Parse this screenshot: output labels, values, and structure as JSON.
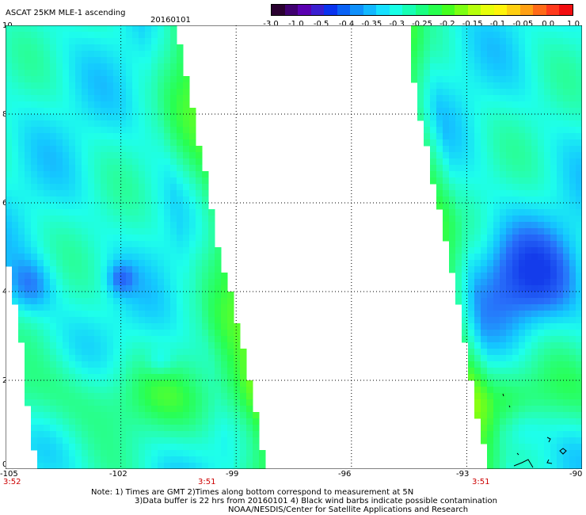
{
  "header": {
    "title": "ASCAT 25KM MLE-1 ascending",
    "date": "20160101"
  },
  "colorbar": {
    "ticks": [
      "-3.0",
      "-1.0",
      "-0.5",
      "-0.4",
      "-0.35",
      "-0.3",
      "-0.25",
      "-0.2",
      "-0.15",
      "-0.1",
      "-0.05",
      "0.0",
      "1.0"
    ],
    "colors": [
      "#2a0030",
      "#400070",
      "#5a00b0",
      "#3a1fd0",
      "#0a33ee",
      "#0a62f5",
      "#0f90fb",
      "#12b8ff",
      "#16e0ff",
      "#18ffe6",
      "#16ffb3",
      "#19ff80",
      "#27ff4d",
      "#44ff1e",
      "#7cff12",
      "#b6ff0c",
      "#e7ff0a",
      "#fff40a",
      "#ffcf10",
      "#ffa014",
      "#ff6a18",
      "#ff3a1c",
      "#f20d10"
    ]
  },
  "axes": {
    "y_labels": [
      "10",
      "8",
      "6",
      "4",
      "2",
      "0"
    ],
    "x_labels": [
      "-105",
      "-102",
      "-99",
      "-96",
      "-93",
      "-90"
    ],
    "times": [
      "3:52",
      "3:51",
      "3:51"
    ]
  },
  "notes": [
    "Note: 1) Times are GMT 2)Times along bottom correspond to measurement at 5N",
    "3)Data buffer is 22 hrs from 20160101 4) Black wind barbs indicate possible contamination",
    "NOAA/NESDIS/Center for Satellite Applications and Research"
  ],
  "map": {
    "lon_range": [
      -105,
      -90
    ],
    "lat_range": [
      0,
      10
    ],
    "gridlines_lon": [
      -102,
      -99,
      -96,
      -93
    ],
    "gridlines_lat": [
      2,
      4,
      6,
      8
    ]
  }
}
